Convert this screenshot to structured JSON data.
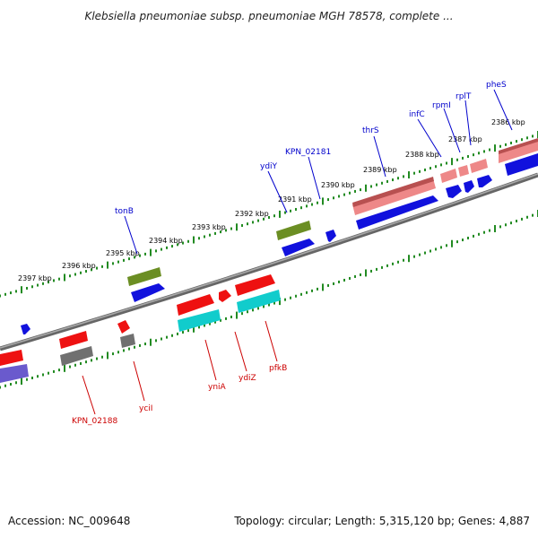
{
  "title": "Klebsiella pneumoniae subsp. pneumoniae MGH 78578, complete ...",
  "footer": {
    "accession": "Accession: NC_009648",
    "topology": "Topology: circular; Length: 5,315,120 bp; Genes: 4,887"
  },
  "colors": {
    "forward_red": "#ee1111",
    "reverse_blue": "#1111dd",
    "rrna_pink": "#ee8888",
    "trna_olive": "#6b8e23",
    "cds_cyan": "#11cccc",
    "pseudo_gray": "#707070",
    "tick_green": "#228b22",
    "backbone_gray": "#888888"
  },
  "kbp_labels": [
    "2386 kbp",
    "2387 kbp",
    "2388 kbp",
    "2389 kbp",
    "2390 kbp",
    "2391 kbp",
    "2392 kbp",
    "2393 kbp",
    "2394 kbp",
    "2395 kbp",
    "2396 kbp",
    "2397 kbp"
  ],
  "genes_top": [
    "pheS",
    "rplT",
    "rpmI",
    "infC",
    "thrS",
    "KPN_02181",
    "ydiY",
    "tonB"
  ],
  "genes_bottom": [
    "pfkB",
    "ydiZ",
    "yniA",
    "yciI",
    "KPN_02188"
  ]
}
